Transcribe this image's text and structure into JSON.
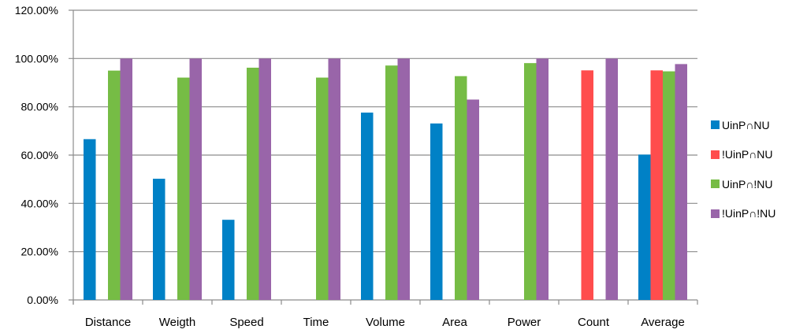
{
  "chart_data": {
    "type": "bar",
    "title": "",
    "xlabel": "",
    "ylabel": "",
    "ylim": [
      0,
      120
    ],
    "y_tick_labels": [
      "0.00%",
      "20.00%",
      "40.00%",
      "60.00%",
      "80.00%",
      "100.00%",
      "120.00%"
    ],
    "y_ticks": [
      0,
      20,
      40,
      60,
      80,
      100,
      120
    ],
    "grid": true,
    "legend_position": "right",
    "categories": [
      "Distance",
      "Weigth",
      "Speed",
      "Time",
      "Volume",
      "Area",
      "Power",
      "Count",
      "Average"
    ],
    "series": [
      {
        "name": "UinP∩NU",
        "color": "#0081C6",
        "values": [
          66.6,
          50.2,
          33.2,
          0,
          77.6,
          73.1,
          0,
          0,
          60.2
        ]
      },
      {
        "name": "!UinP∩NU",
        "color": "#FF4D4D",
        "values": [
          0,
          0,
          0,
          0,
          0,
          0,
          0,
          95.1,
          95.1
        ]
      },
      {
        "name": "UinP∩!NU",
        "color": "#76BC45",
        "values": [
          95.0,
          92.1,
          96.2,
          92.1,
          97.1,
          92.7,
          98.1,
          0,
          94.7
        ]
      },
      {
        "name": "!UinP∩!NU",
        "color": "#9965A9",
        "values": [
          100,
          100,
          100,
          100,
          100,
          83.0,
          100,
          100,
          97.7
        ]
      }
    ]
  }
}
